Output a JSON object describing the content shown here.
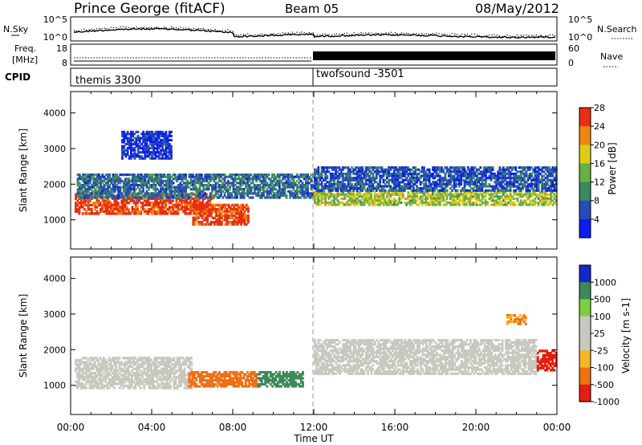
{
  "header": {
    "station": "Prince George (fitACF)",
    "beam": "Beam 05",
    "date": "08/May/2012"
  },
  "noise_panel": {
    "left_label": "N.Sky",
    "right_label": "N.Search",
    "left_ticks": [
      "10^5",
      "10^0"
    ],
    "right_ticks": [
      "10^5",
      "10^0"
    ]
  },
  "freq_panel": {
    "left_label_line1": "Freq.",
    "left_label_line2": "[MHz]",
    "right_label": "Nave",
    "left_ticks": [
      "18",
      "8"
    ],
    "right_ticks": [
      "60",
      "0"
    ]
  },
  "cpid_panel": {
    "label": "CPID",
    "modes": [
      {
        "name": "themis 3300",
        "start_hour": 0
      },
      {
        "name": "twofsound -3501",
        "start_hour": 12
      }
    ]
  },
  "chart_data": [
    {
      "type": "heatmap",
      "quantity": "Power",
      "xlabel": "",
      "ylabel": "Slant Range [km]",
      "colorbar_label": "Power [dB]",
      "x_range_hours": [
        0,
        24
      ],
      "ylim": [
        180,
        4600
      ],
      "y_ticks": [
        1000,
        2000,
        3000,
        4000
      ],
      "colorbar_ticks": [
        "4",
        "8",
        "12",
        "16",
        "20",
        "24",
        "28"
      ],
      "colors": [
        "#0a1ef0",
        "#2a4ab8",
        "#3a8a62",
        "#66b046",
        "#dccc18",
        "#f08410",
        "#e82e14"
      ],
      "regions": [
        {
          "x": [
            0.2,
            7.0
          ],
          "y": [
            1150,
            1750
          ],
          "value": 28
        },
        {
          "x": [
            6.0,
            8.8
          ],
          "y": [
            850,
            1450
          ],
          "value": 28
        },
        {
          "x": [
            0.3,
            12.0
          ],
          "y": [
            1600,
            2300
          ],
          "value": 10
        },
        {
          "x": [
            12.0,
            24.0
          ],
          "y": [
            1400,
            1800
          ],
          "value": 18
        },
        {
          "x": [
            12.0,
            24.0
          ],
          "y": [
            1800,
            2500
          ],
          "value": 8
        },
        {
          "x": [
            2.5,
            5.0
          ],
          "y": [
            2700,
            3500
          ],
          "value": 6
        }
      ]
    },
    {
      "type": "heatmap",
      "quantity": "Velocity",
      "xlabel": "Time UT",
      "ylabel": "Slant Range [km]",
      "colorbar_label": "Velocity [m s-1]",
      "x_range_hours": [
        0,
        24
      ],
      "x_ticks": [
        "00:00",
        "04:00",
        "08:00",
        "12:00",
        "16:00",
        "20:00",
        "00:00"
      ],
      "ylim": [
        180,
        4600
      ],
      "y_ticks": [
        1000,
        2000,
        3000,
        4000
      ],
      "colorbar_ticks": [
        "1000",
        "500",
        "100",
        "25",
        "-25",
        "-100",
        "-500",
        "-1000"
      ],
      "colors": [
        "#1428c8",
        "#3c8a5a",
        "#7cd040",
        "#c8c8c0",
        "#c8c8c0",
        "#f8b428",
        "#f07014",
        "#e41e10"
      ],
      "regions": [
        {
          "x": [
            0.2,
            6.0
          ],
          "y": [
            900,
            1800
          ],
          "value": 0
        },
        {
          "x": [
            5.8,
            9.2
          ],
          "y": [
            950,
            1400
          ],
          "value": -500
        },
        {
          "x": [
            9.2,
            11.5
          ],
          "y": [
            950,
            1400
          ],
          "value": 400
        },
        {
          "x": [
            12.0,
            23.0
          ],
          "y": [
            1300,
            2300
          ],
          "value": 0
        },
        {
          "x": [
            23.0,
            24.0
          ],
          "y": [
            1400,
            2000
          ],
          "value": -900
        },
        {
          "x": [
            21.5,
            22.5
          ],
          "y": [
            2700,
            3000
          ],
          "value": -300
        }
      ]
    }
  ]
}
